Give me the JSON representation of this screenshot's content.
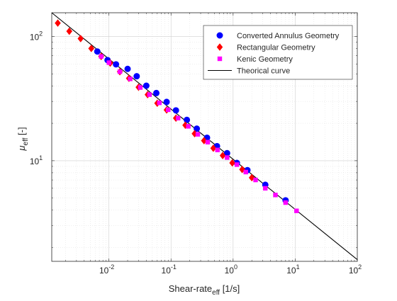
{
  "chart_data": {
    "type": "scatter",
    "title": "",
    "xlabel": "Shear-rate",
    "xlabel_sub": "eff",
    "xlabel_unit": " [1/s]",
    "ylabel": "μ",
    "ylabel_sub": "eff",
    "ylabel_unit": " [-]",
    "xscale": "log",
    "yscale": "log",
    "xlim": [
      0.0012,
      100
    ],
    "ylim": [
      1.55,
      155
    ],
    "grid": true,
    "minor_grid": true,
    "legend_position": "top-right",
    "x_ticks": [
      {
        "value": 0.01,
        "base": "10",
        "exp": "-2"
      },
      {
        "value": 0.1,
        "base": "10",
        "exp": "-1"
      },
      {
        "value": 1,
        "base": "10",
        "exp": "0"
      },
      {
        "value": 10,
        "base": "10",
        "exp": "1"
      },
      {
        "value": 100,
        "base": "10",
        "exp": "2"
      }
    ],
    "y_ticks": [
      {
        "value": 10,
        "base": "10",
        "exp": "1"
      },
      {
        "value": 100,
        "base": "10",
        "exp": "2"
      }
    ],
    "series": [
      {
        "name": "Converted Annulus Geometry",
        "marker": "circle",
        "color": "#0000ff",
        "x": [
          0.0065,
          0.0095,
          0.013,
          0.02,
          0.028,
          0.04,
          0.058,
          0.085,
          0.12,
          0.18,
          0.26,
          0.38,
          0.55,
          0.8,
          1.15,
          1.7,
          3.3,
          7.0
        ],
        "y": [
          75.6,
          64.5,
          59.6,
          54.8,
          47.8,
          40.1,
          35.0,
          29.7,
          25.4,
          21.3,
          18.1,
          15.3,
          13.1,
          11.5,
          9.6,
          8.4,
          6.4,
          4.8
        ]
      },
      {
        "name": "Rectangular Geometry",
        "marker": "diamond",
        "color": "#ff0000",
        "x": [
          0.0015,
          0.0023,
          0.0035,
          0.0052,
          0.0075,
          0.0105,
          0.015,
          0.021,
          0.03,
          0.042,
          0.06,
          0.085,
          0.12,
          0.17,
          0.24,
          0.34,
          0.48,
          0.68,
          0.97,
          1.4,
          2.0
        ],
        "y": [
          128.0,
          110.0,
          96.0,
          80.0,
          69.0,
          61.0,
          52.0,
          46.0,
          39.0,
          34.0,
          29.0,
          25.6,
          22.0,
          19.3,
          16.5,
          14.5,
          12.6,
          11.0,
          9.6,
          8.5,
          7.3
        ]
      },
      {
        "name": "Kenic Geometry",
        "marker": "square",
        "color": "#ff00ff",
        "x": [
          0.0075,
          0.01,
          0.015,
          0.022,
          0.032,
          0.045,
          0.065,
          0.09,
          0.13,
          0.19,
          0.27,
          0.39,
          0.56,
          0.8,
          1.15,
          1.6,
          2.3,
          3.3,
          4.8,
          7.0,
          10.5
        ],
        "y": [
          69.0,
          61.5,
          52.0,
          45.5,
          38.8,
          34.0,
          29.2,
          25.7,
          22.0,
          18.9,
          16.3,
          14.1,
          12.2,
          10.6,
          9.3,
          8.1,
          7.0,
          6.0,
          5.3,
          4.6,
          3.95
        ]
      },
      {
        "name": "Theorical curve",
        "marker": "line",
        "color": "#000000",
        "x": [
          0.0012,
          100
        ],
        "y": [
          155,
          1.6
        ]
      }
    ]
  }
}
